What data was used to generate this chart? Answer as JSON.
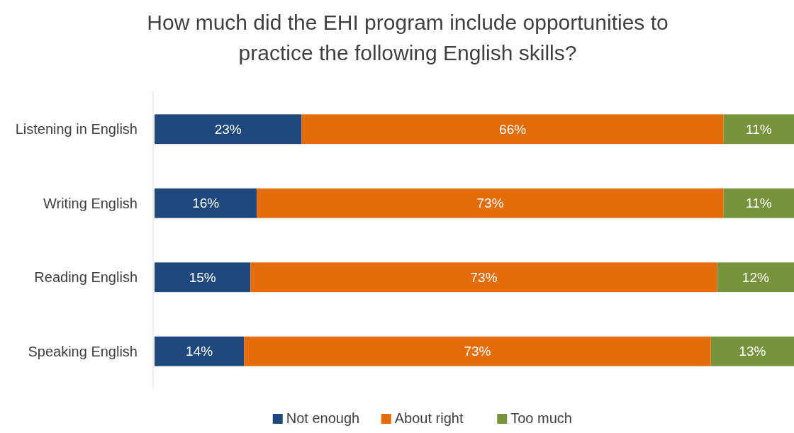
{
  "chart_data": {
    "type": "bar",
    "orientation": "horizontal",
    "stacked": true,
    "title": "How much did the EHI program include opportunities to practice the following English skills?",
    "categories": [
      "Listening in English",
      "Writing English",
      "Reading English",
      "Speaking English"
    ],
    "series": [
      {
        "name": "Not enough",
        "color": "#1f497d",
        "values": [
          23,
          16,
          15,
          14
        ],
        "value_labels": [
          "23%",
          "16%",
          "15%",
          "14%"
        ]
      },
      {
        "name": "About right",
        "color": "#e46c0a",
        "values": [
          66,
          73,
          73,
          73
        ],
        "value_labels": [
          "66%",
          "73%",
          "73%",
          "73%"
        ]
      },
      {
        "name": "Too much",
        "color": "#77933c",
        "values": [
          11,
          11,
          12,
          13
        ],
        "value_labels": [
          "11%",
          "11%",
          "12%",
          "13%"
        ]
      }
    ],
    "xlim": [
      0,
      100
    ],
    "tick_labels": "y",
    "legend": "bottom"
  }
}
